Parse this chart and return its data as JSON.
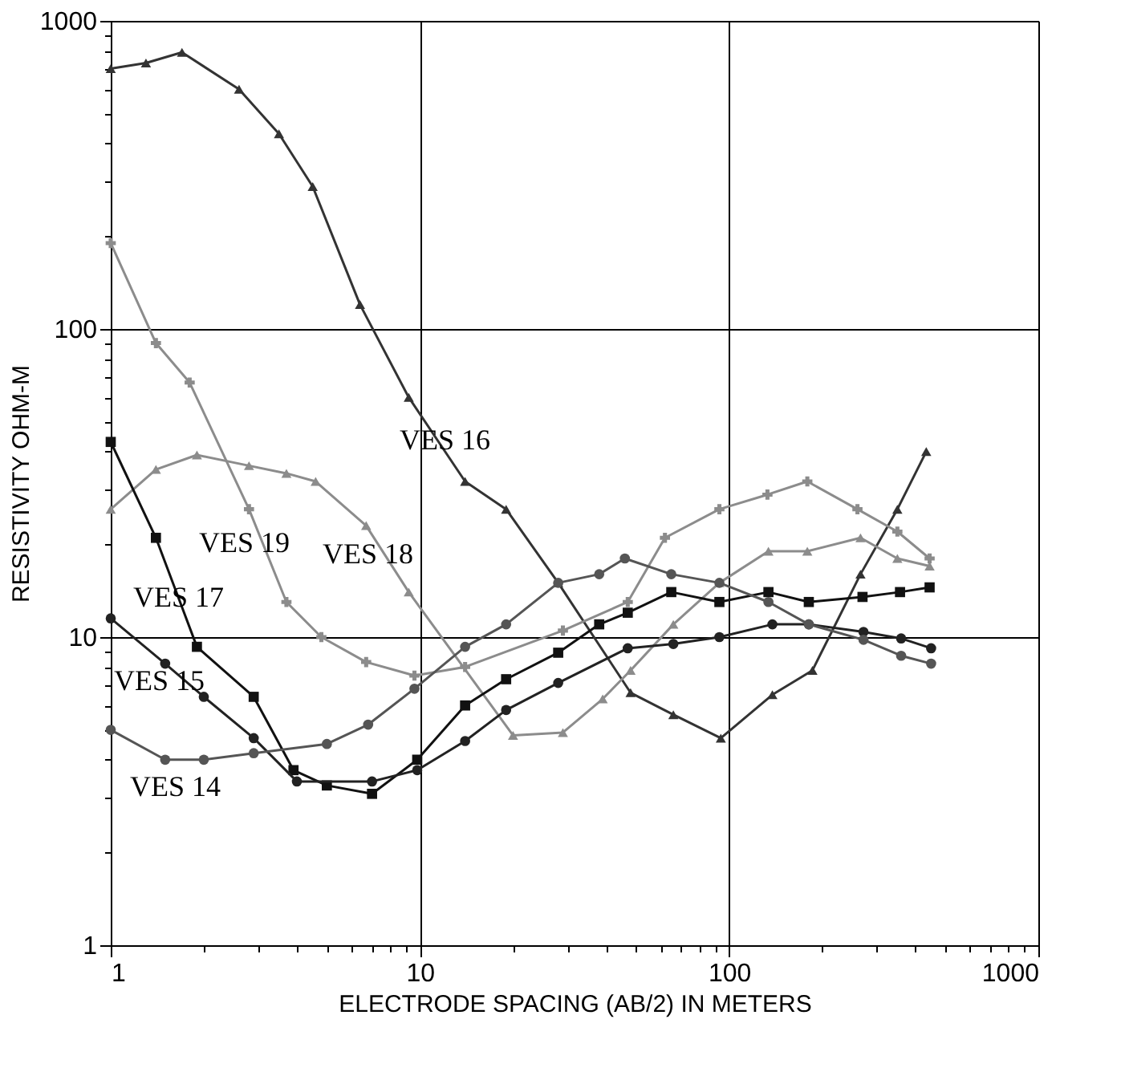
{
  "chart_data": {
    "type": "line",
    "xlabel": "ELECTRODE SPACING (AB/2) IN METERS",
    "ylabel": "RESISTIVITY OHM-M",
    "log": "xy",
    "grid": true,
    "line_style": "solid",
    "xlim": [
      1,
      1000
    ],
    "ylim": [
      1,
      1000
    ],
    "xticks": [
      1,
      {
        "value": 2,
        "label": null
      },
      {
        "value": 3,
        "label": null
      },
      {
        "value": 4,
        "label": null
      },
      {
        "value": 5,
        "label": null
      },
      {
        "value": 6,
        "label": null
      },
      {
        "value": 7,
        "label": null
      },
      {
        "value": 8,
        "label": null
      },
      {
        "value": 9,
        "label": null
      },
      10,
      {
        "value": 20,
        "label": null
      },
      {
        "value": 30,
        "label": null
      },
      {
        "value": 40,
        "label": null
      },
      {
        "value": 50,
        "label": null
      },
      {
        "value": 60,
        "label": null
      },
      {
        "value": 70,
        "label": null
      },
      {
        "value": 80,
        "label": null
      },
      {
        "value": 90,
        "label": null
      },
      100,
      {
        "value": 200,
        "label": null
      },
      {
        "value": 300,
        "label": null
      },
      {
        "value": 400,
        "label": null
      },
      {
        "value": 500,
        "label": null
      },
      {
        "value": 600,
        "label": null
      },
      {
        "value": 700,
        "label": null
      },
      {
        "value": 800,
        "label": null
      },
      {
        "value": 900,
        "label": null
      },
      1000
    ],
    "yticks": [
      1,
      {
        "value": 2,
        "label": null
      },
      {
        "value": 3,
        "label": null
      },
      {
        "value": 4,
        "label": null
      },
      {
        "value": 5,
        "label": null
      },
      {
        "value": 6,
        "label": null
      },
      {
        "value": 7,
        "label": null
      },
      {
        "value": 8,
        "label": null
      },
      {
        "value": 9,
        "label": null
      },
      10,
      {
        "value": 20,
        "label": null
      },
      {
        "value": 30,
        "label": null
      },
      {
        "value": 40,
        "label": null
      },
      {
        "value": 50,
        "label": null
      },
      {
        "value": 60,
        "label": null
      },
      {
        "value": 70,
        "label": null
      },
      {
        "value": 80,
        "label": null
      },
      {
        "value": 90,
        "label": null
      },
      100,
      {
        "value": 200,
        "label": null
      },
      {
        "value": 300,
        "label": null
      },
      {
        "value": 400,
        "label": null
      },
      {
        "value": 500,
        "label": null
      },
      {
        "value": 600,
        "label": null
      },
      {
        "value": 700,
        "label": null
      },
      {
        "value": 800,
        "label": null
      },
      {
        "value": 900,
        "label": null
      },
      1000
    ],
    "series": [
      {
        "color": "#333333",
        "marker": "triangle",
        "x": [
          1,
          1.3,
          1.7,
          2.6,
          3.5,
          4.5,
          6.4,
          9.2,
          14,
          19,
          28,
          48,
          66,
          94,
          138,
          186,
          266,
          350,
          434
        ],
        "values": [
          700,
          730,
          790,
          600,
          430,
          290,
          120,
          60,
          32,
          26,
          15,
          6.6,
          5.6,
          4.7,
          6.5,
          7.8,
          16,
          26,
          40
        ]
      },
      {
        "color": "#8c8c8c",
        "marker": "cross",
        "x": [
          1,
          1.4,
          1.8,
          2.8,
          3.7,
          4.8,
          6.7,
          9.6,
          14,
          29,
          47,
          62,
          93,
          133,
          179,
          260,
          350,
          445
        ],
        "values": [
          190,
          90,
          67,
          26,
          13,
          10,
          8.3,
          7.5,
          8,
          10.5,
          13,
          21,
          26,
          29,
          32,
          26,
          22,
          18
        ]
      },
      {
        "color": "#8c8c8c",
        "marker": "triangle",
        "x": [
          1,
          1.4,
          1.9,
          2.8,
          3.7,
          4.6,
          6.7,
          9.2,
          20,
          29,
          39,
          48,
          66,
          93,
          134,
          179,
          266,
          350,
          445
        ],
        "values": [
          26,
          35,
          39,
          36,
          34,
          32,
          23,
          14,
          4.8,
          4.9,
          6.3,
          7.8,
          11,
          15,
          19,
          19,
          21,
          18,
          17
        ]
      },
      {
        "color": "#111111",
        "marker": "square",
        "x": [
          1,
          1.4,
          1.9,
          2.9,
          3.9,
          5,
          7,
          9.8,
          14,
          19,
          28,
          38,
          47,
          65,
          93,
          134,
          181,
          270,
          357,
          445
        ],
        "values": [
          43,
          21,
          9.3,
          6.4,
          3.7,
          3.3,
          3.1,
          4,
          6,
          7.3,
          8.9,
          11,
          12,
          14,
          13,
          14,
          13,
          13.5,
          14,
          14.5
        ]
      },
      {
        "color": "#222222",
        "marker": "circle",
        "x": [
          1,
          1.5,
          2,
          2.9,
          4,
          7,
          9.8,
          14,
          19,
          28,
          47,
          66,
          93,
          138,
          181,
          272,
          360,
          450
        ],
        "values": [
          11.5,
          8.2,
          6.4,
          4.7,
          3.4,
          3.4,
          3.7,
          4.6,
          5.8,
          7.1,
          9.2,
          9.5,
          10,
          11,
          11,
          10.4,
          9.9,
          9.2
        ]
      },
      {
        "color": "#555555",
        "marker": "circle",
        "x": [
          1,
          1.5,
          2,
          2.9,
          5,
          6.8,
          9.6,
          14,
          19,
          28,
          38,
          46,
          65,
          93,
          134,
          181,
          272,
          360,
          450
        ],
        "values": [
          5,
          4,
          4,
          4.2,
          4.5,
          5.2,
          6.8,
          9.3,
          11,
          15,
          16,
          18,
          16,
          15,
          13,
          11,
          9.8,
          8.7,
          8.2
        ]
      }
    ],
    "annotations": [
      "VES 16",
      "VES 19",
      "VES 18",
      "VES 17",
      "VES 15",
      "VES 14"
    ]
  }
}
